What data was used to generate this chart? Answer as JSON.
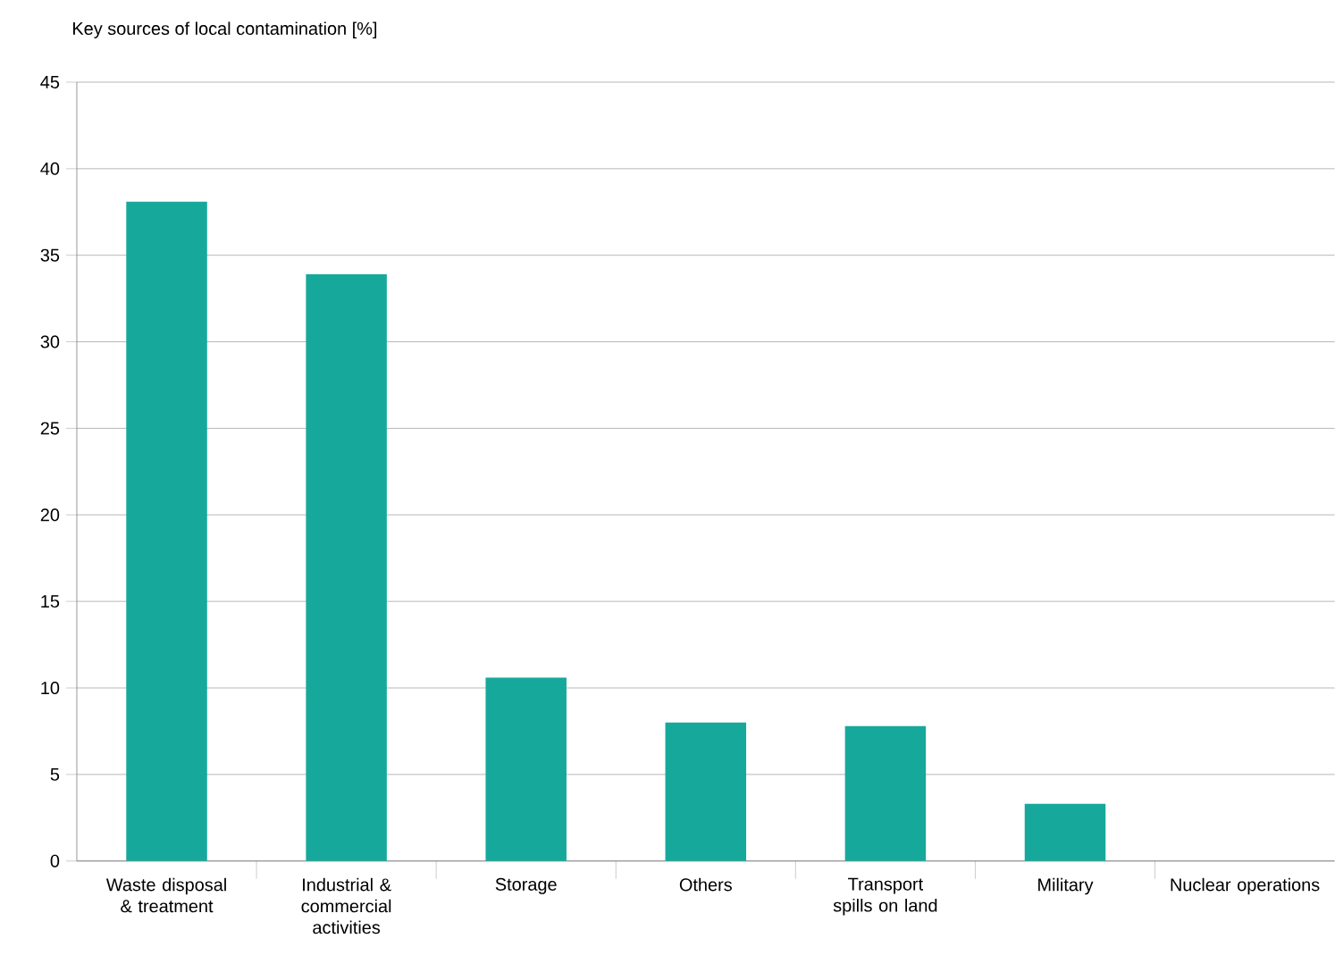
{
  "chart_data": {
    "type": "bar",
    "title": "Key sources of local contamination [%]",
    "categories": [
      "Waste disposal & treatment",
      "Industrial & commercial activities",
      "Storage",
      "Others",
      "Transport spills on land",
      "Military",
      "Nuclear operations"
    ],
    "values": [
      38.1,
      33.9,
      10.6,
      8.0,
      7.8,
      3.3,
      0
    ],
    "color": "#17a89c",
    "ylim": [
      0,
      45
    ],
    "yticks": [
      0,
      5,
      10,
      15,
      20,
      25,
      30,
      35,
      40,
      45
    ],
    "grid": "y"
  }
}
